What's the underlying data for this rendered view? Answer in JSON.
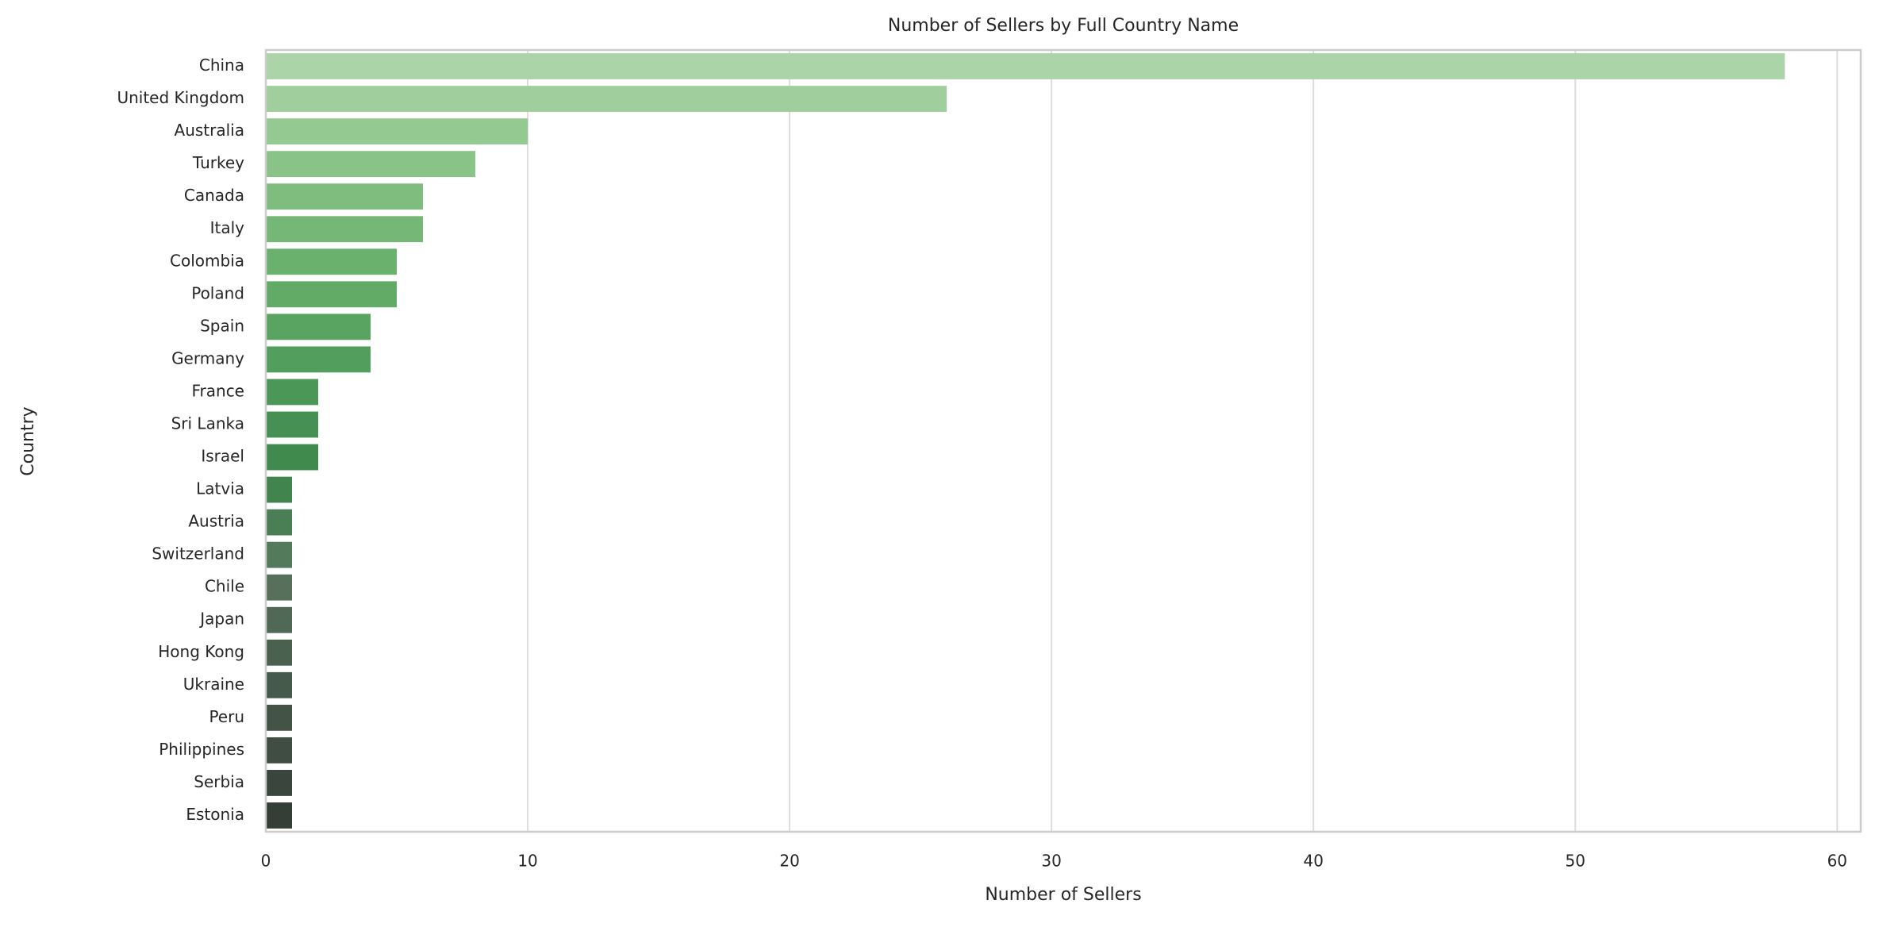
{
  "chart_data": {
    "type": "barh",
    "title": "Number of Sellers by Full Country Name",
    "x_label": "Number of Sellers",
    "y_label": "Country",
    "categories": [
      "China",
      "United Kingdom",
      "Australia",
      "Turkey",
      "Canada",
      "Italy",
      "Colombia",
      "Poland",
      "Spain",
      "Germany",
      "France",
      "Sri Lanka",
      "Israel",
      "Latvia",
      "Austria",
      "Switzerland",
      "Chile",
      "Japan",
      "Hong Kong",
      "Ukraine",
      "Peru",
      "Philippines",
      "Serbia",
      "Estonia"
    ],
    "values": [
      58,
      26,
      10,
      8,
      6,
      6,
      5,
      5,
      4,
      4,
      2,
      2,
      2,
      1,
      1,
      1,
      1,
      1,
      1,
      1,
      1,
      1,
      1,
      1
    ],
    "colors": [
      "#acd4a9",
      "#a0cf9d",
      "#94c991",
      "#89c387",
      "#7fbd7e",
      "#75b776",
      "#6bb16e",
      "#62ab67",
      "#5aa462",
      "#529e5c",
      "#4b9757",
      "#459052",
      "#418a4e",
      "#41844d",
      "#4a7f55",
      "#547a5c",
      "#56705c",
      "#506856",
      "#4b6150",
      "#465a4b",
      "#435346",
      "#3f4d42",
      "#3a463d",
      "#343e37"
    ],
    "xlim": [
      0,
      60.9
    ],
    "xticks": [
      0,
      10,
      20,
      30,
      40,
      50,
      60
    ],
    "grid": true
  }
}
